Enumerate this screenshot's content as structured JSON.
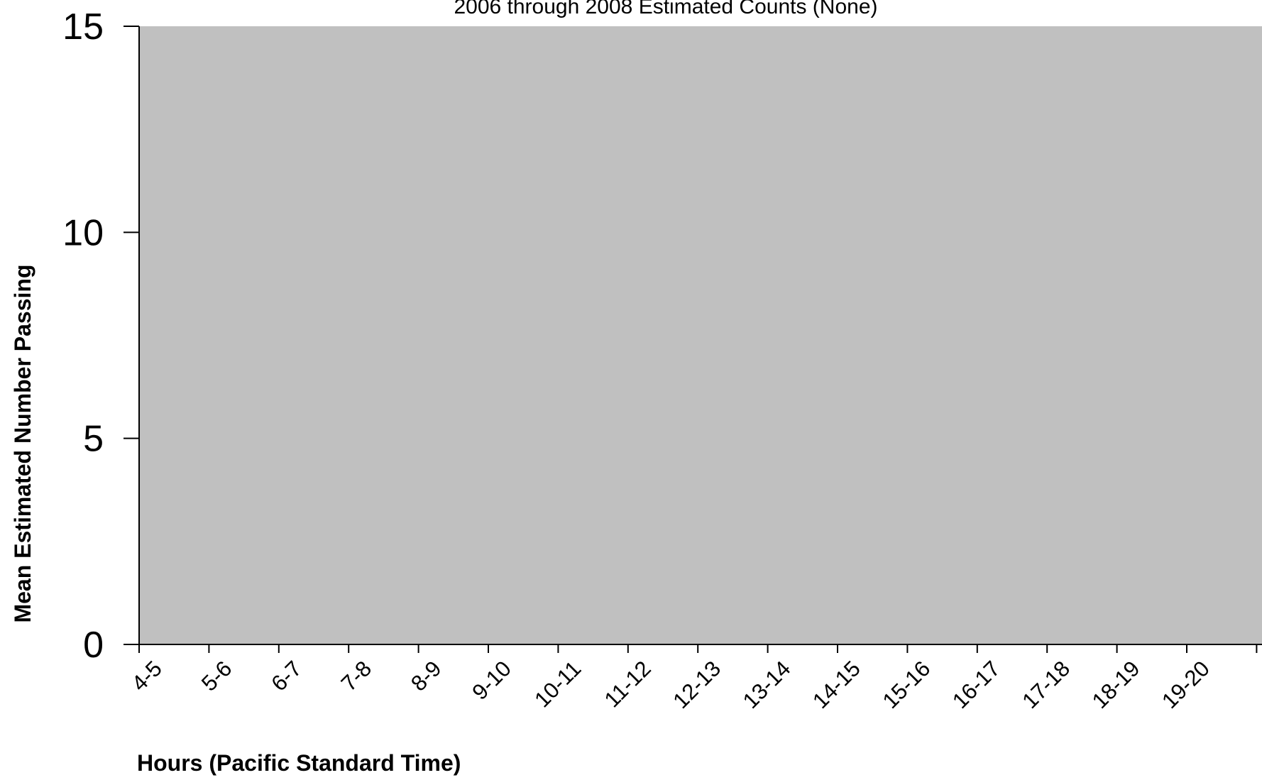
{
  "chart_data": {
    "type": "bar",
    "title": "2006 through 2008 Estimated Counts (None)",
    "xlabel": "Hours (Pacific Standard Time)",
    "ylabel": "Mean Estimated Number Passing",
    "categories": [
      "4-5",
      "5-6",
      "6-7",
      "7-8",
      "8-9",
      "9-10",
      "10-11",
      "11-12",
      "12-13",
      "13-14",
      "14-15",
      "15-16",
      "16-17",
      "17-18",
      "18-19",
      "19-20"
    ],
    "series": [
      {
        "values": [
          0,
          0,
          0,
          0,
          0,
          0,
          0,
          0,
          0,
          0,
          0,
          0,
          0,
          0,
          0,
          0
        ]
      }
    ],
    "ylim": [
      0,
      15
    ],
    "yticks": [
      "0",
      "5",
      "10",
      "15"
    ],
    "grid": false,
    "legend": "none",
    "colors": {
      "plot_background": "#c0c0c0",
      "page_background": "#ffffff",
      "axis": "#000000"
    }
  }
}
